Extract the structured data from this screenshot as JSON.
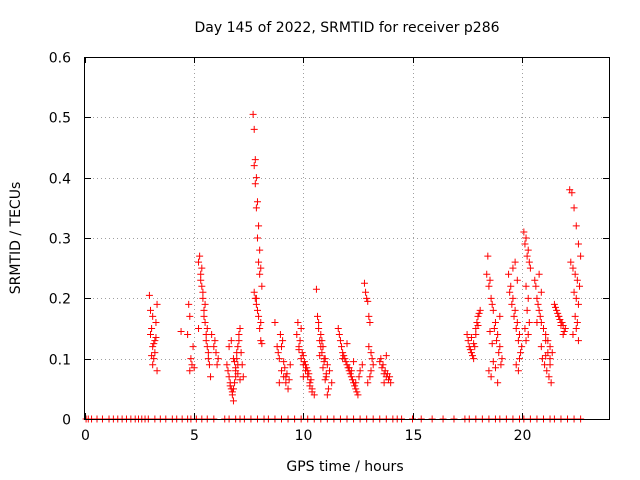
{
  "chart_data": {
    "type": "scatter",
    "title": "Day 145 of 2022, SRMTID for receiver p286",
    "xlabel": "GPS time / hours",
    "ylabel": "SRMTID / TECUs",
    "xlim": [
      0,
      24
    ],
    "ylim": [
      0,
      0.6
    ],
    "x_ticks": [
      0,
      5,
      10,
      15,
      20
    ],
    "x_tick_labels": [
      "0",
      "5",
      "10",
      "15",
      "20"
    ],
    "y_ticks": [
      0,
      0.1,
      0.2,
      0.3,
      0.4,
      0.5,
      0.6
    ],
    "y_tick_labels": [
      "0",
      "0.1",
      "0.2",
      "0.3",
      "0.4",
      "0.5",
      "0.6"
    ],
    "grid": true,
    "marker": "plus",
    "series": [
      {
        "name": "SRMTID",
        "color": "#ff0000",
        "x": [
          0.05,
          0.15,
          0.3,
          0.55,
          0.8,
          1.1,
          1.3,
          1.5,
          1.7,
          1.9,
          2.1,
          2.3,
          2.45,
          2.6,
          2.75,
          2.9,
          3.2,
          3.45,
          3.7,
          4.0,
          4.2,
          4.45,
          4.7,
          4.85,
          5.1,
          5.35,
          5.6,
          5.9,
          6.4,
          6.6,
          6.9,
          7.1,
          7.3,
          7.6,
          7.9,
          8.2,
          8.4,
          8.7,
          9.0,
          9.3,
          9.6,
          9.9,
          10.2,
          10.5,
          10.8,
          11.1,
          11.4,
          11.7,
          12.0,
          12.3,
          12.6,
          12.9,
          13.2,
          13.5,
          13.8,
          14.1,
          14.3,
          14.5,
          15.0,
          15.4,
          15.9,
          16.4,
          16.9,
          17.4,
          17.6,
          17.9,
          18.2,
          18.5,
          18.8,
          19.0,
          19.3,
          19.6,
          19.9,
          20.1,
          20.4,
          20.7,
          21.0,
          21.3,
          21.5,
          21.8,
          22.1,
          22.4,
          22.7,
          2.95,
          3.0,
          3.05,
          3.1,
          3.15,
          3.2,
          3.25,
          3.3,
          3.1,
          3.2,
          3.0,
          3.3,
          3.15,
          3.05,
          3.25,
          3.1,
          4.4,
          4.7,
          4.75,
          4.8,
          4.85,
          4.9,
          4.8,
          4.95,
          5.0,
          5.2,
          5.25,
          5.3,
          5.35,
          5.4,
          5.45,
          5.5,
          5.55,
          5.6,
          5.65,
          5.7,
          5.75,
          5.3,
          5.4,
          5.5,
          5.6,
          5.35,
          5.45,
          5.55,
          5.65,
          5.2,
          5.8,
          5.9,
          6.0,
          6.1,
          5.95,
          6.05,
          6.5,
          6.55,
          6.6,
          6.65,
          6.7,
          6.75,
          6.8,
          6.85,
          6.9,
          6.95,
          7.0,
          7.05,
          7.1,
          7.15,
          7.2,
          7.25,
          6.6,
          6.7,
          6.8,
          6.9,
          7.0,
          7.1,
          6.65,
          6.75,
          6.85,
          6.95,
          7.05,
          6.8,
          6.9,
          7.0,
          7.7,
          7.75,
          7.8,
          7.85,
          7.9,
          7.95,
          8.0,
          8.05,
          8.1,
          7.75,
          7.8,
          7.85,
          7.9,
          7.95,
          8.0,
          7.8,
          7.85,
          7.9,
          7.95,
          8.0,
          8.05,
          7.75,
          7.85,
          8.05,
          8.1,
          8.7,
          8.8,
          8.9,
          9.0,
          9.1,
          9.2,
          9.3,
          9.4,
          8.85,
          8.95,
          9.05,
          9.15,
          9.25,
          9.35,
          9.0,
          9.1,
          8.9,
          9.2,
          9.7,
          9.8,
          9.9,
          10.0,
          10.1,
          10.2,
          10.3,
          10.4,
          10.5,
          9.75,
          9.85,
          9.95,
          10.05,
          10.15,
          10.25,
          10.35,
          9.9,
          10.0,
          10.1,
          10.2,
          10.3,
          10.4,
          9.8,
          10.0,
          10.6,
          10.7,
          10.8,
          10.9,
          11.0,
          11.1,
          11.2,
          11.3,
          10.65,
          10.75,
          10.85,
          10.95,
          11.05,
          11.15,
          10.7,
          10.8,
          10.9,
          11.0,
          11.1,
          10.85,
          10.95,
          11.05,
          10.75,
          11.6,
          11.7,
          11.8,
          11.9,
          12.0,
          12.1,
          12.2,
          12.3,
          12.4,
          12.5,
          12.6,
          12.7,
          11.65,
          11.75,
          11.85,
          11.95,
          12.05,
          12.15,
          12.25,
          12.35,
          12.45,
          12.55,
          11.8,
          12.0,
          12.2,
          12.4,
          12.1,
          12.3,
          12.8,
          12.9,
          13.0,
          13.1,
          13.2,
          12.85,
          12.95,
          13.05,
          13.15,
          13.0,
          13.1,
          13.05,
          12.95,
          13.5,
          13.6,
          13.7,
          13.8,
          13.9,
          14.0,
          13.55,
          13.65,
          13.75,
          13.85,
          13.95,
          13.7,
          13.8,
          17.5,
          17.6,
          17.7,
          17.8,
          17.9,
          18.0,
          18.1,
          17.55,
          17.65,
          17.75,
          17.85,
          17.95,
          18.05,
          17.7,
          17.8,
          17.9,
          18.0,
          18.4,
          18.5,
          18.6,
          18.7,
          18.8,
          18.9,
          19.0,
          19.1,
          18.45,
          18.55,
          18.65,
          18.75,
          18.85,
          18.95,
          19.05,
          18.5,
          18.6,
          18.7,
          18.8,
          18.9,
          19.0,
          18.55,
          18.65,
          19.4,
          19.5,
          19.6,
          19.7,
          19.8,
          19.9,
          20.0,
          19.45,
          19.55,
          19.65,
          19.75,
          19.85,
          19.95,
          19.6,
          19.7,
          19.8,
          19.9,
          19.75,
          19.85,
          20.1,
          20.2,
          20.3,
          20.4,
          20.15,
          20.25,
          20.35,
          20.2,
          20.3,
          20.25,
          20.35,
          20.15,
          20.3,
          20.2,
          20.6,
          20.7,
          20.8,
          20.9,
          21.0,
          21.1,
          21.2,
          21.3,
          21.4,
          20.65,
          20.75,
          20.85,
          20.95,
          21.05,
          21.15,
          21.25,
          21.35,
          20.8,
          20.9,
          21.0,
          21.1,
          21.2,
          21.3,
          20.7,
          20.9,
          21.1,
          21.3,
          21.5,
          21.6,
          21.7,
          21.8,
          21.9,
          22.0,
          21.55,
          21.65,
          21.75,
          21.85,
          21.95,
          21.7,
          21.8,
          21.9,
          22.2,
          22.3,
          22.4,
          22.5,
          22.6,
          22.7,
          22.25,
          22.35,
          22.45,
          22.55,
          22.65,
          22.4,
          22.5,
          22.6,
          22.45,
          22.55,
          22.5,
          22.35,
          22.6
        ],
        "y": [
          0,
          0,
          0,
          0,
          0,
          0,
          0,
          0,
          0,
          0,
          0,
          0,
          0,
          0,
          0,
          0,
          0,
          0,
          0,
          0,
          0,
          0,
          0,
          0,
          0,
          0,
          0,
          0,
          0,
          0,
          0,
          0,
          0,
          0,
          0,
          0,
          0,
          0,
          0,
          0,
          0,
          0,
          0,
          0,
          0,
          0,
          0,
          0,
          0,
          0,
          0,
          0,
          0,
          0,
          0,
          0,
          0,
          0,
          0,
          0,
          0,
          0,
          0,
          0,
          0,
          0,
          0,
          0,
          0,
          0,
          0,
          0,
          0,
          0,
          0,
          0,
          0,
          0,
          0,
          0,
          0,
          0,
          0,
          0.205,
          0.18,
          0.15,
          0.12,
          0.1,
          0.13,
          0.16,
          0.19,
          0.09,
          0.11,
          0.14,
          0.08,
          0.125,
          0.105,
          0.135,
          0.17,
          0.145,
          0.14,
          0.19,
          0.17,
          0.1,
          0.09,
          0.08,
          0.12,
          0.085,
          0.26,
          0.27,
          0.24,
          0.22,
          0.2,
          0.18,
          0.16,
          0.14,
          0.12,
          0.1,
          0.09,
          0.07,
          0.23,
          0.21,
          0.19,
          0.15,
          0.25,
          0.17,
          0.13,
          0.11,
          0.15,
          0.14,
          0.12,
          0.11,
          0.1,
          0.13,
          0.09,
          0.09,
          0.08,
          0.07,
          0.06,
          0.05,
          0.04,
          0.03,
          0.06,
          0.08,
          0.1,
          0.12,
          0.14,
          0.15,
          0.11,
          0.09,
          0.07,
          0.12,
          0.13,
          0.1,
          0.085,
          0.075,
          0.065,
          0.055,
          0.045,
          0.095,
          0.11,
          0.13,
          0.05,
          0.07,
          0.09,
          0.505,
          0.48,
          0.43,
          0.4,
          0.36,
          0.32,
          0.28,
          0.25,
          0.22,
          0.42,
          0.39,
          0.35,
          0.3,
          0.26,
          0.24,
          0.2,
          0.19,
          0.18,
          0.17,
          0.15,
          0.13,
          0.21,
          0.2,
          0.16,
          0.125,
          0.16,
          0.12,
          0.1,
          0.08,
          0.07,
          0.06,
          0.05,
          0.09,
          0.11,
          0.14,
          0.13,
          0.085,
          0.075,
          0.065,
          0.12,
          0.095,
          0.06,
          0.07,
          0.14,
          0.12,
          0.1,
          0.09,
          0.08,
          0.07,
          0.06,
          0.05,
          0.04,
          0.16,
          0.13,
          0.11,
          0.095,
          0.085,
          0.075,
          0.065,
          0.15,
          0.105,
          0.09,
          0.08,
          0.055,
          0.045,
          0.115,
          0.07,
          0.215,
          0.16,
          0.14,
          0.12,
          0.1,
          0.09,
          0.08,
          0.06,
          0.17,
          0.13,
          0.11,
          0.095,
          0.075,
          0.05,
          0.15,
          0.12,
          0.085,
          0.065,
          0.04,
          0.13,
          0.1,
          0.07,
          0.105,
          0.15,
          0.13,
          0.11,
          0.1,
          0.09,
          0.08,
          0.07,
          0.06,
          0.05,
          0.04,
          0.08,
          0.09,
          0.14,
          0.12,
          0.105,
          0.095,
          0.085,
          0.075,
          0.065,
          0.055,
          0.045,
          0.07,
          0.1,
          0.125,
          0.08,
          0.06,
          0.085,
          0.095,
          0.225,
          0.2,
          0.17,
          0.11,
          0.09,
          0.21,
          0.195,
          0.16,
          0.1,
          0.12,
          0.08,
          0.07,
          0.06,
          0.095,
          0.085,
          0.075,
          0.07,
          0.065,
          0.06,
          0.1,
          0.09,
          0.08,
          0.075,
          0.07,
          0.06,
          0.105,
          0.14,
          0.12,
          0.11,
          0.1,
          0.15,
          0.17,
          0.18,
          0.13,
          0.115,
          0.105,
          0.12,
          0.16,
          0.175,
          0.135,
          0.125,
          0.14,
          0.155,
          0.24,
          0.22,
          0.2,
          0.18,
          0.16,
          0.14,
          0.12,
          0.1,
          0.27,
          0.23,
          0.19,
          0.15,
          0.13,
          0.11,
          0.09,
          0.08,
          0.07,
          0.095,
          0.085,
          0.06,
          0.17,
          0.145,
          0.125,
          0.24,
          0.22,
          0.2,
          0.18,
          0.16,
          0.14,
          0.12,
          0.21,
          0.19,
          0.17,
          0.15,
          0.13,
          0.11,
          0.25,
          0.26,
          0.23,
          0.1,
          0.09,
          0.08,
          0.31,
          0.3,
          0.28,
          0.25,
          0.29,
          0.27,
          0.26,
          0.22,
          0.2,
          0.18,
          0.16,
          0.15,
          0.14,
          0.13,
          0.23,
          0.2,
          0.18,
          0.16,
          0.15,
          0.14,
          0.13,
          0.12,
          0.11,
          0.22,
          0.19,
          0.17,
          0.1,
          0.09,
          0.08,
          0.07,
          0.06,
          0.24,
          0.21,
          0.15,
          0.13,
          0.11,
          0.1,
          0.16,
          0.12,
          0.105,
          0.09,
          0.19,
          0.18,
          0.17,
          0.16,
          0.155,
          0.15,
          0.185,
          0.175,
          0.165,
          0.16,
          0.145,
          0.17,
          0.155,
          0.14,
          0.38,
          0.375,
          0.35,
          0.32,
          0.29,
          0.27,
          0.26,
          0.25,
          0.24,
          0.23,
          0.22,
          0.21,
          0.2,
          0.19,
          0.17,
          0.16,
          0.15,
          0.14,
          0.13
        ]
      }
    ]
  }
}
